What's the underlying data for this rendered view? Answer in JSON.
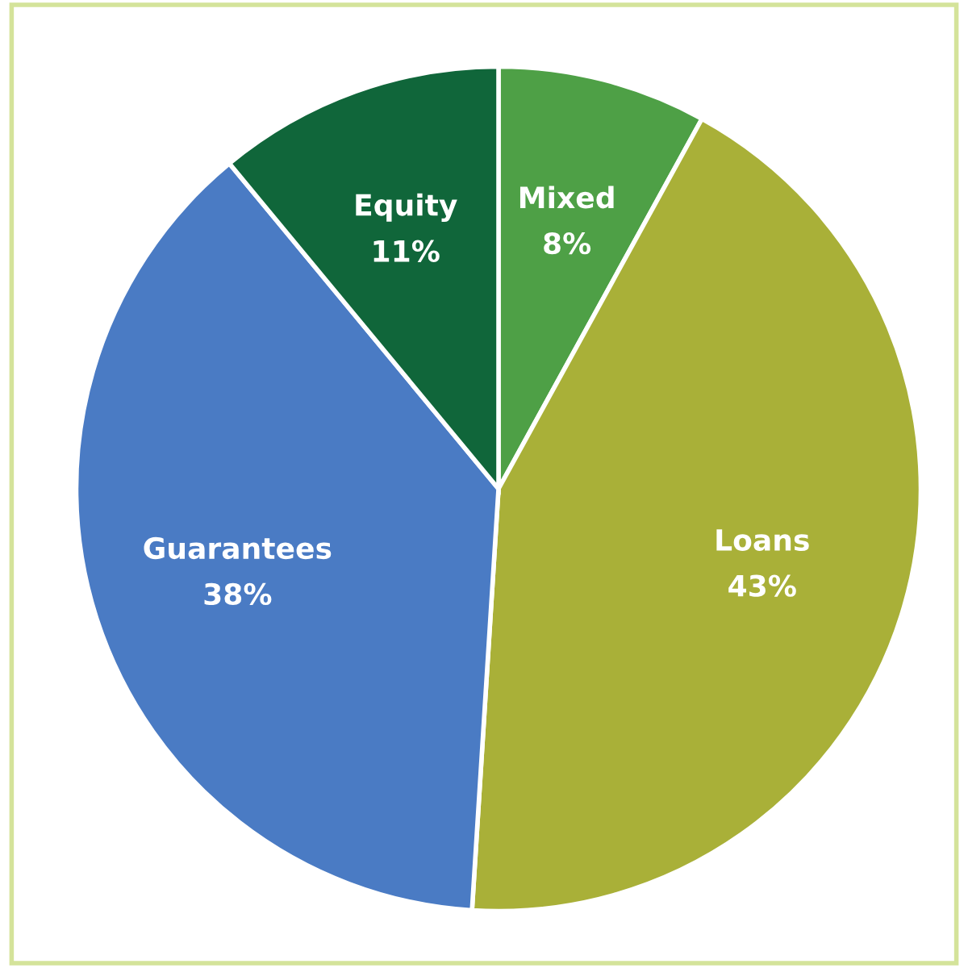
{
  "chart_data": {
    "type": "pie",
    "categories": [
      "Mixed",
      "Loans",
      "Guarantees",
      "Equity"
    ],
    "values": [
      8,
      43,
      38,
      11
    ],
    "colors": [
      "#4ea046",
      "#a9b038",
      "#4a7bc4",
      "#10663a"
    ],
    "value_labels": [
      "8%",
      "43%",
      "38%",
      "11%"
    ]
  }
}
